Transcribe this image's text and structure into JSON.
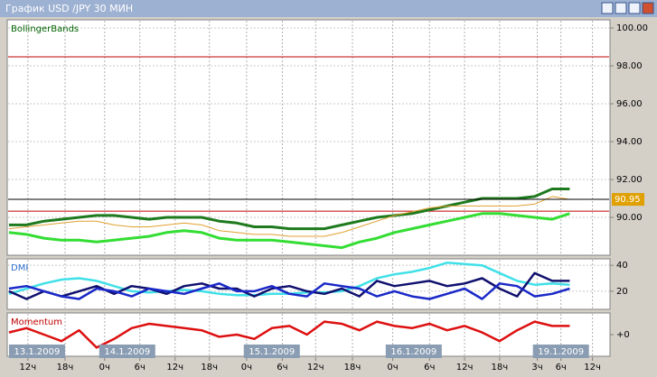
{
  "window": {
    "title": "График USD /JPY  30 МИН"
  },
  "time_axis": {
    "xlim": [
      -0.1,
      34.3
    ],
    "xticks": [
      {
        "value": 1.08,
        "label": "12ч"
      },
      {
        "value": 3.2,
        "label": "18ч"
      },
      {
        "value": 5.46,
        "label": "0ч"
      },
      {
        "value": 7.47,
        "label": "6ч"
      },
      {
        "value": 9.48,
        "label": "12ч"
      },
      {
        "value": 11.44,
        "label": "18ч"
      },
      {
        "value": 13.56,
        "label": "0ч"
      },
      {
        "value": 15.6,
        "label": "6ч"
      },
      {
        "value": 17.5,
        "label": "12ч"
      },
      {
        "value": 19.6,
        "label": "18ч"
      },
      {
        "value": 21.9,
        "label": "0ч"
      },
      {
        "value": 24.0,
        "label": "6ч"
      },
      {
        "value": 26.0,
        "label": "12ч"
      },
      {
        "value": 28.0,
        "label": "18ч"
      },
      {
        "value": 30.15,
        "label": "3ч"
      },
      {
        "value": 31.5,
        "label": "6ч"
      },
      {
        "value": 33.3,
        "label": "12ч"
      }
    ],
    "date_labels": [
      {
        "value": 0.0,
        "label": "13.1.2009"
      },
      {
        "value": 5.15,
        "label": "14.1.2009"
      },
      {
        "value": 13.4,
        "label": "15.1.2009"
      },
      {
        "value": 21.5,
        "label": "16.1.2009"
      },
      {
        "value": 29.9,
        "label": "19.1.2009"
      }
    ]
  },
  "chart_data": [
    {
      "type": "line",
      "title": "BollingerBands",
      "title_color": "#006400",
      "grid": true,
      "ylim": [
        88.0,
        100.43
      ],
      "yticks": [
        {
          "value": 90,
          "label": "90.00"
        },
        {
          "value": 92,
          "label": "92.00"
        },
        {
          "value": 94,
          "label": "94.00"
        },
        {
          "value": 96,
          "label": "96.00"
        },
        {
          "value": 98,
          "label": "98.00"
        },
        {
          "value": 100,
          "label": "100.00"
        }
      ],
      "hlines": [
        {
          "value": 98.48,
          "color": "#c00000"
        },
        {
          "value": 90.33,
          "color": "#c00000"
        }
      ],
      "price_line": {
        "value": 90.95,
        "label": "90.95",
        "color": "#000000",
        "label_color": "#e0a000"
      },
      "series": [
        {
          "color": "#1e7a1e",
          "width": 3,
          "values": [
            89.6,
            89.6,
            89.8,
            89.9,
            90.0,
            90.1,
            90.1,
            90.0,
            89.9,
            90.0,
            90.0,
            90.0,
            89.8,
            89.7,
            89.5,
            89.5,
            89.4,
            89.4,
            89.4,
            89.6,
            89.8,
            90.0,
            90.1,
            90.2,
            90.4,
            90.6,
            90.8,
            91.0,
            91.0,
            91.0,
            91.1,
            91.5,
            91.5
          ]
        },
        {
          "color": "#33dd33",
          "width": 3,
          "values": [
            89.2,
            89.1,
            88.9,
            88.8,
            88.8,
            88.7,
            88.8,
            88.9,
            89.0,
            89.2,
            89.3,
            89.2,
            88.9,
            88.8,
            88.8,
            88.8,
            88.7,
            88.6,
            88.5,
            88.4,
            88.7,
            88.9,
            89.2,
            89.4,
            89.6,
            89.8,
            90.0,
            90.2,
            90.2,
            90.1,
            90.0,
            89.9,
            90.2
          ]
        },
        {
          "color": "#e0a030",
          "width": 1,
          "values": [
            89.4,
            89.5,
            89.6,
            89.7,
            89.8,
            89.8,
            89.6,
            89.5,
            89.5,
            89.6,
            89.7,
            89.6,
            89.3,
            89.2,
            89.1,
            89.1,
            89.0,
            89.0,
            89.0,
            89.2,
            89.5,
            89.8,
            90.1,
            90.3,
            90.5,
            90.6,
            90.6,
            90.6,
            90.6,
            90.6,
            90.7,
            91.1,
            90.95
          ]
        }
      ]
    },
    {
      "type": "line",
      "title": "DMI",
      "title_color": "#3070d0",
      "grid": true,
      "ylim": [
        6,
        45
      ],
      "yticks": [
        20,
        40
      ],
      "series": [
        {
          "color": "#40e0e8",
          "width": 2.5,
          "values": [
            18,
            22,
            26,
            29,
            30,
            28,
            24,
            20,
            19,
            20,
            21,
            20,
            18,
            17,
            17,
            18,
            18,
            19,
            19,
            20,
            24,
            30,
            33,
            35,
            38,
            42,
            41,
            40,
            34,
            28,
            25,
            26,
            25
          ]
        },
        {
          "color": "#10106e",
          "width": 2.5,
          "values": [
            20,
            14,
            20,
            16,
            20,
            24,
            18,
            24,
            22,
            18,
            24,
            26,
            22,
            22,
            16,
            22,
            24,
            20,
            18,
            22,
            16,
            28,
            24,
            26,
            28,
            24,
            26,
            30,
            22,
            16,
            34,
            28,
            28
          ]
        },
        {
          "color": "#1a28c8",
          "width": 2.5,
          "values": [
            22,
            24,
            20,
            16,
            14,
            22,
            20,
            16,
            22,
            20,
            18,
            22,
            26,
            20,
            20,
            24,
            18,
            16,
            26,
            24,
            22,
            16,
            20,
            16,
            14,
            18,
            22,
            14,
            26,
            24,
            16,
            18,
            22
          ]
        }
      ]
    },
    {
      "type": "line",
      "title": "Momentum",
      "title_color": "#c00000",
      "grid": false,
      "ylim": [
        -1,
        1
      ],
      "yticks": [
        {
          "value": 0,
          "label": "+0"
        }
      ],
      "series": [
        {
          "color": "#dd1010",
          "width": 2.5,
          "values": [
            0.1,
            0.3,
            0.0,
            -0.3,
            0.2,
            -0.6,
            -0.2,
            0.3,
            0.5,
            0.4,
            0.3,
            0.2,
            -0.1,
            0.0,
            -0.2,
            0.3,
            0.4,
            0.0,
            0.6,
            0.5,
            0.2,
            0.6,
            0.4,
            0.3,
            0.5,
            0.2,
            0.4,
            0.1,
            -0.3,
            0.2,
            0.6,
            0.4,
            0.4
          ]
        }
      ]
    }
  ]
}
